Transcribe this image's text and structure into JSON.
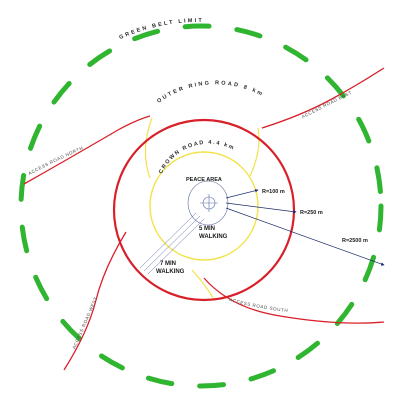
{
  "labels": {
    "green_belt": "GREEN BELT LIMIT",
    "outer_ring": "OUTER RING ROAD 8 km",
    "crown_road": "CROWN ROAD 4.4 km",
    "peace_area": "PEACE AREA",
    "r100": "R=100 m",
    "r250": "R=250 m",
    "r2500": "R=2500 m",
    "walk5_line1": "5 MIN",
    "walk5_line2": "WALKING",
    "walk7_line1": "7 MIN",
    "walk7_line2": "WALKING",
    "access_north": "ACCESS ROAD NORTH",
    "access_east": "ACCESS ROAD EAST",
    "access_west": "ACCESS ROAD WEST",
    "access_south": "ACCESS ROAD SOUTH"
  },
  "colors": {
    "green_belt": "#2fb52f",
    "outer_ring": "#d8202a",
    "crown_road": "#f2e34a",
    "access_roads": "#d8202a",
    "center_lines": "#5a6aa8",
    "arrows": "#1f2d6b"
  }
}
